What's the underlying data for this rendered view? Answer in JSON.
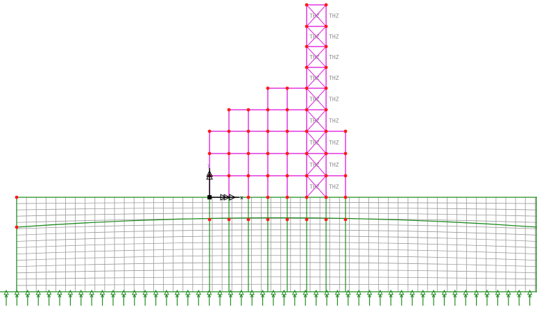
{
  "view": {
    "background": "#ffffff"
  },
  "colors": {
    "frame": "#e233e2",
    "brace": "#e233e2",
    "node": "#ff1a1a",
    "soil_line": "#1e8c1e",
    "mesh": "#9a9a9a",
    "support": "#1e8c1e",
    "axis": "#000000",
    "label": "#8a8a8a"
  },
  "structure": {
    "member_label": "THZ",
    "axis_labels": {
      "x": "x",
      "y": "y"
    }
  },
  "icons": {
    "support": "pinned-support-icon",
    "axis_origin": "axis-triad-icon",
    "load_arrow": "load-arrow-icon"
  }
}
